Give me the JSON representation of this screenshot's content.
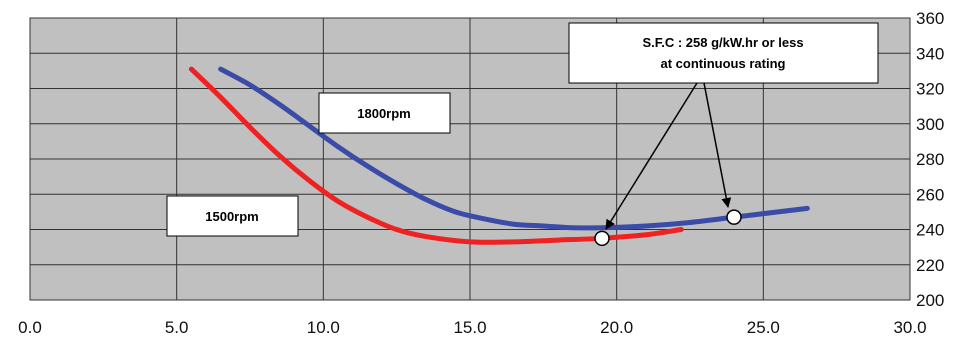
{
  "chart_data": {
    "type": "line",
    "title": "",
    "xlabel": "",
    "ylabel": "",
    "xlim": [
      0,
      30
    ],
    "ylim": [
      200,
      360
    ],
    "x_ticks": [
      "0.0",
      "5.0",
      "10.0",
      "15.0",
      "20.0",
      "25.0",
      "30.0"
    ],
    "y_ticks": [
      "200",
      "220",
      "240",
      "260",
      "280",
      "300",
      "320",
      "340",
      "360"
    ],
    "y_axis_side": "right",
    "grid": true,
    "plot_background": "#c0c0c0",
    "series": [
      {
        "name": "1500rpm",
        "color": "#ee2222",
        "x": [
          5.5,
          6.5,
          7.5,
          8.5,
          9.5,
          10.5,
          11.5,
          12.5,
          13.5,
          15.0,
          16.5,
          18.0,
          19.5,
          21.0,
          22.2
        ],
        "y": [
          331,
          315,
          298,
          282,
          268,
          256,
          247,
          240,
          236,
          233,
          233,
          234,
          235,
          237,
          240
        ]
      },
      {
        "name": "1800rpm",
        "color": "#3a4ca8",
        "x": [
          6.5,
          7.5,
          8.5,
          9.5,
          10.5,
          11.5,
          12.5,
          13.5,
          14.5,
          15.5,
          16.5,
          17.5,
          18.5,
          19.5,
          21.0,
          22.5,
          24.0,
          25.5,
          26.5
        ],
        "y": [
          331,
          322,
          311,
          299,
          287,
          276,
          266,
          257,
          250,
          246,
          243,
          242,
          241,
          241,
          242,
          244,
          247,
          250,
          252
        ]
      }
    ],
    "markers": [
      {
        "x": 19.5,
        "y": 235
      },
      {
        "x": 24.0,
        "y": 247
      }
    ],
    "annotations": {
      "sfc_line1": "S.F.C : 258 g/kW.hr or less",
      "sfc_line2": "at continuous rating",
      "label_1800": "1800rpm",
      "label_1500": "1500rpm"
    }
  }
}
